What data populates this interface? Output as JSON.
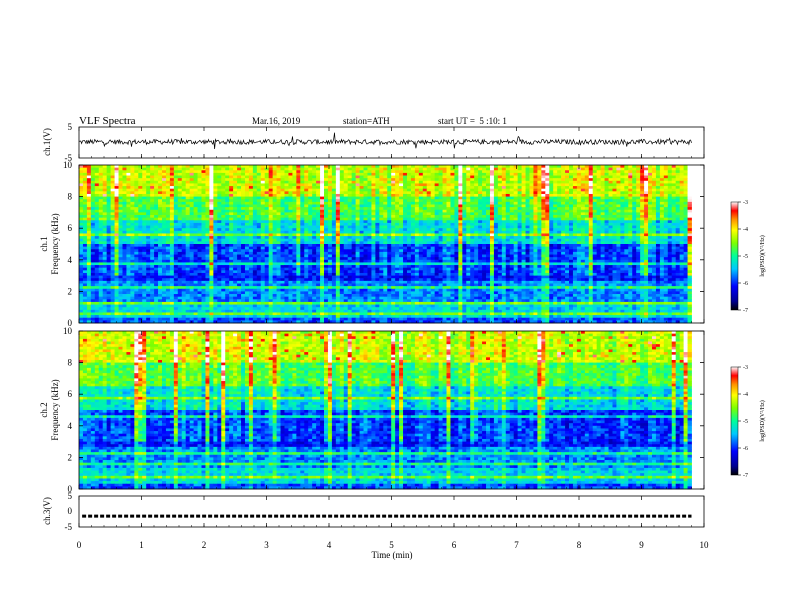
{
  "header": {
    "title": "VLF Spectra",
    "date": "Mar.16, 2019",
    "station": "station=ATH",
    "start": "start UT =  5 :10: 1"
  },
  "chart_data": [
    {
      "panel": "ch1-waveform",
      "type": "line",
      "ylabel": "ch.1(V)",
      "ylim": [
        -5,
        5
      ],
      "yticks": [
        "5",
        "-5"
      ],
      "xlim": [
        0,
        10
      ],
      "series": [
        {
          "baseline": 0.2,
          "noise_amplitude": 1.0,
          "x_end": 9.8
        }
      ]
    },
    {
      "panel": "ch1-spectrogram",
      "type": "heatmap",
      "ylabel_line1": "ch.1",
      "ylabel_line2": "Frequency (kHz)",
      "ylim": [
        0,
        10
      ],
      "yticks": [
        "0",
        "2",
        "4",
        "6",
        "8",
        "10"
      ],
      "xlim": [
        0,
        10
      ],
      "x_end": 9.8,
      "colorbar": {
        "label": "log(PSD)(V²/Hz)",
        "range": [
          -7,
          -3
        ],
        "ticks": [
          "-3",
          "-4",
          "-5",
          "-6",
          "-7"
        ]
      }
    },
    {
      "panel": "ch2-spectrogram",
      "type": "heatmap",
      "ylabel_line1": "ch.2",
      "ylabel_line2": "Frequency (kHz)",
      "ylim": [
        0,
        10
      ],
      "yticks": [
        "0",
        "2",
        "4",
        "6",
        "8",
        "10"
      ],
      "xlim": [
        0,
        10
      ],
      "x_end": 9.8,
      "colorbar": {
        "label": "log(PSD)(V²/Hz)",
        "range": [
          -7,
          -3
        ],
        "ticks": [
          "-3",
          "-4",
          "-5",
          "-6",
          "-7"
        ]
      }
    },
    {
      "panel": "ch3-waveform",
      "type": "line",
      "ylabel": "ch.3(V)",
      "ylim": [
        -5,
        5
      ],
      "yticks": [
        "5",
        "0",
        "-5"
      ],
      "xlim": [
        0,
        10
      ],
      "series": [
        {
          "level": -1.5,
          "style": "dashed",
          "x_end": 9.8
        }
      ]
    }
  ],
  "x_axis": {
    "label": "Time (min)",
    "ticks": [
      "0",
      "1",
      "2",
      "3",
      "4",
      "5",
      "6",
      "7",
      "8",
      "9",
      "10"
    ]
  }
}
